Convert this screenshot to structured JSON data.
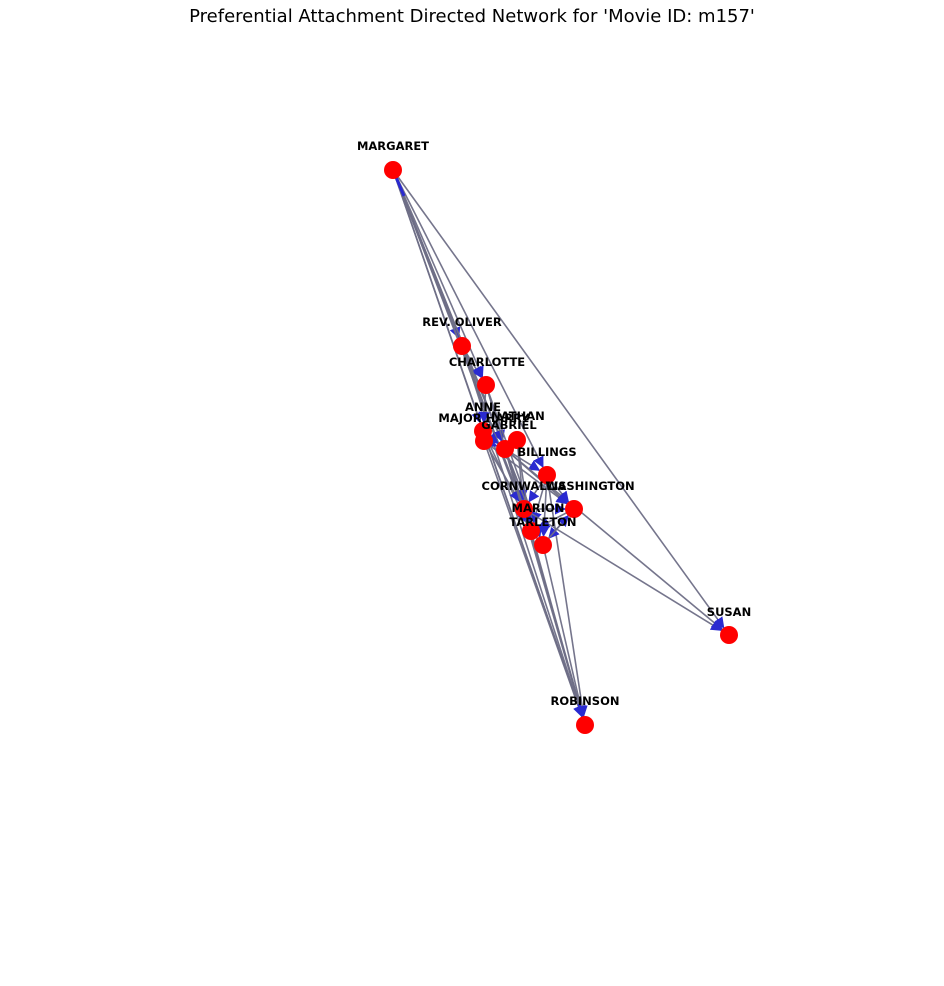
{
  "title": "Preferential Attachment Directed Network for 'Movie ID: m157'",
  "colors": {
    "node": "#ff0000",
    "edge": "#6e6e86",
    "arrow": "#2a2ad0",
    "label": "#000000",
    "background": "#ffffff"
  },
  "chart_data": {
    "type": "network",
    "directed": true,
    "nodes": [
      {
        "id": "MARGARET",
        "label": "MARGARET"
      },
      {
        "id": "REV. OLIVER",
        "label": "REV. OLIVER"
      },
      {
        "id": "CHARLOTTE",
        "label": "CHARLOTTE"
      },
      {
        "id": "ANNE",
        "label": "ANNE"
      },
      {
        "id": "MAJOR HARRY",
        "label": "MAJOR HARRY"
      },
      {
        "id": "NATHAN",
        "label": "NATHAN"
      },
      {
        "id": "GABRIEL",
        "label": "GABRIEL"
      },
      {
        "id": "BILLINGS",
        "label": "BILLINGS"
      },
      {
        "id": "CORNWALLIS",
        "label": "CORNWALLIS"
      },
      {
        "id": "WASHINGTON",
        "label": "WASHINGTON"
      },
      {
        "id": "MARION",
        "label": "MARION"
      },
      {
        "id": "TARLETON",
        "label": "TARLETON"
      },
      {
        "id": "SUSAN",
        "label": "SUSAN"
      },
      {
        "id": "ROBINSON",
        "label": "ROBINSON"
      }
    ],
    "edges": [
      [
        "MARGARET",
        "REV. OLIVER"
      ],
      [
        "MARGARET",
        "CHARLOTTE"
      ],
      [
        "MARGARET",
        "ANNE"
      ],
      [
        "MARGARET",
        "GABRIEL"
      ],
      [
        "MARGARET",
        "BILLINGS"
      ],
      [
        "MARGARET",
        "MARION"
      ],
      [
        "MARGARET",
        "TARLETON"
      ],
      [
        "MARGARET",
        "CORNWALLIS"
      ],
      [
        "MARGARET",
        "SUSAN"
      ],
      [
        "MARGARET",
        "ROBINSON"
      ],
      [
        "REV. OLIVER",
        "CHARLOTTE"
      ],
      [
        "REV. OLIVER",
        "GABRIEL"
      ],
      [
        "REV. OLIVER",
        "MARION"
      ],
      [
        "REV. OLIVER",
        "ROBINSON"
      ],
      [
        "CHARLOTTE",
        "ANNE"
      ],
      [
        "CHARLOTTE",
        "GABRIEL"
      ],
      [
        "CHARLOTTE",
        "MARION"
      ],
      [
        "CHARLOTTE",
        "TARLETON"
      ],
      [
        "ANNE",
        "GABRIEL"
      ],
      [
        "ANNE",
        "MARION"
      ],
      [
        "ANNE",
        "ROBINSON"
      ],
      [
        "MAJOR HARRY",
        "GABRIEL"
      ],
      [
        "MAJOR HARRY",
        "CORNWALLIS"
      ],
      [
        "MAJOR HARRY",
        "WASHINGTON"
      ],
      [
        "MAJOR HARRY",
        "ROBINSON"
      ],
      [
        "NATHAN",
        "GABRIEL"
      ],
      [
        "NATHAN",
        "CORNWALLIS"
      ],
      [
        "NATHAN",
        "MARION"
      ],
      [
        "GABRIEL",
        "BILLINGS"
      ],
      [
        "GABRIEL",
        "CORNWALLIS"
      ],
      [
        "GABRIEL",
        "WASHINGTON"
      ],
      [
        "GABRIEL",
        "MARION"
      ],
      [
        "GABRIEL",
        "TARLETON"
      ],
      [
        "GABRIEL",
        "SUSAN"
      ],
      [
        "GABRIEL",
        "ROBINSON"
      ],
      [
        "BILLINGS",
        "CORNWALLIS"
      ],
      [
        "BILLINGS",
        "WASHINGTON"
      ],
      [
        "BILLINGS",
        "MARION"
      ],
      [
        "BILLINGS",
        "TARLETON"
      ],
      [
        "BILLINGS",
        "ROBINSON"
      ],
      [
        "CORNWALLIS",
        "WASHINGTON"
      ],
      [
        "CORNWALLIS",
        "MARION"
      ],
      [
        "CORNWALLIS",
        "SUSAN"
      ],
      [
        "CORNWALLIS",
        "ROBINSON"
      ],
      [
        "WASHINGTON",
        "MARION"
      ],
      [
        "WASHINGTON",
        "TARLETON"
      ],
      [
        "MARION",
        "TARLETON"
      ],
      [
        "MARION",
        "ROBINSON"
      ],
      [
        "TARLETON",
        "WASHINGTON"
      ],
      [
        "TARLETON",
        "ROBINSON"
      ]
    ]
  }
}
